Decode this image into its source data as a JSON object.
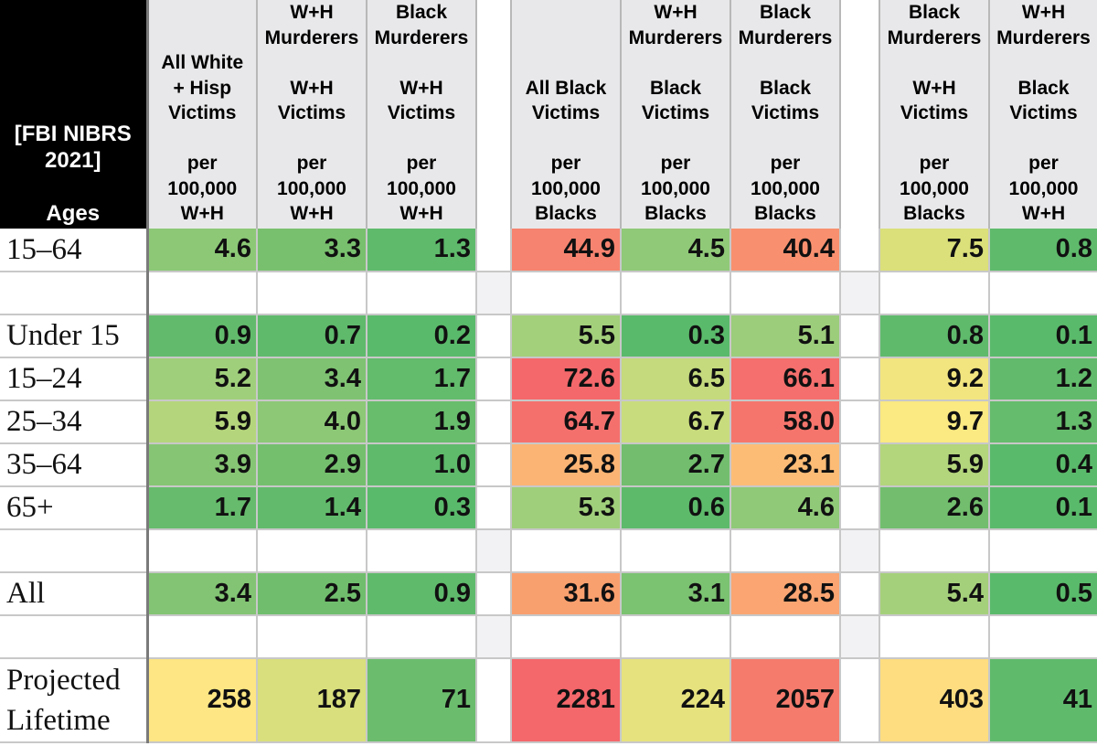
{
  "header": {
    "corner_title": "[FBI NIBRS\n2021]\n\nAges",
    "columns": [
      "All White\n+ Hisp\nVictims\n\nper\n100,000\nW+H",
      "W+H\nMurderers\n\nW+H\nVictims\n\nper\n100,000\nW+H",
      "Black\nMurderers\n\nW+H\nVictims\n\nper\n100,000\nW+H",
      "All Black\nVictims\n\nper\n100,000\nBlacks",
      "W+H\nMurderers\n\nBlack\nVictims\n\nper\n100,000\nBlacks",
      "Black\nMurderers\n\nBlack\nVictims\n\nper\n100,000\nBlacks",
      "Black\nMurderers\n\nW+H\nVictims\n\nper\n100,000\nBlacks",
      "W+H\nMurderers\n\nBlack\nVictims\n\nper\n100,000\nW+H"
    ]
  },
  "rows": [
    {
      "label": "15–64",
      "values": [
        "4.6",
        "3.3",
        "1.3",
        "44.9",
        "4.5",
        "40.4",
        "7.5",
        "0.8"
      ],
      "colors": [
        "#8cc876",
        "#79c06e",
        "#5fba6c",
        "#f6836f",
        "#90c978",
        "#f8906f",
        "#dbe07a",
        "#5fba6c"
      ]
    },
    {
      "spacer": true
    },
    {
      "label": "Under 15",
      "values": [
        "0.9",
        "0.7",
        "0.2",
        "5.5",
        "0.3",
        "5.1",
        "0.8",
        "0.1"
      ],
      "colors": [
        "#62bb6c",
        "#5fba6c",
        "#5aba6b",
        "#a3d07b",
        "#5aba6b",
        "#9ccd7b",
        "#5fba6c",
        "#5aba6b"
      ]
    },
    {
      "label": "15–24",
      "values": [
        "5.2",
        "3.4",
        "1.7",
        "72.6",
        "6.5",
        "66.1",
        "9.2",
        "1.2"
      ],
      "colors": [
        "#a0cf7b",
        "#7fc372",
        "#63bb6c",
        "#f4686b",
        "#c4da7d",
        "#f46f6d",
        "#f2e57f",
        "#62bb6c"
      ]
    },
    {
      "label": "25–34",
      "values": [
        "5.9",
        "4.0",
        "1.9",
        "64.7",
        "6.7",
        "58.0",
        "9.7",
        "1.3"
      ],
      "colors": [
        "#b5d57c",
        "#8cc876",
        "#68bd6d",
        "#f4706d",
        "#c9dc7d",
        "#f5756c",
        "#fbe982",
        "#65bc6c"
      ]
    },
    {
      "label": "35–64",
      "values": [
        "3.9",
        "2.9",
        "1.0",
        "25.8",
        "2.7",
        "23.1",
        "5.9",
        "0.4"
      ],
      "colors": [
        "#86c574",
        "#74bf6e",
        "#5fba6c",
        "#fbb474",
        "#72be6e",
        "#fdbc76",
        "#b3d57c",
        "#5aba6b"
      ]
    },
    {
      "label": "65+",
      "values": [
        "1.7",
        "1.4",
        "0.3",
        "5.3",
        "0.6",
        "4.6",
        "2.6",
        "0.1"
      ],
      "colors": [
        "#66bc6c",
        "#62bb6c",
        "#5aba6b",
        "#a0cf7b",
        "#5dba6b",
        "#90c978",
        "#72be6e",
        "#5aba6b"
      ]
    },
    {
      "spacer": true
    },
    {
      "label": "All",
      "values": [
        "3.4",
        "2.5",
        "0.9",
        "31.6",
        "3.1",
        "28.5",
        "5.4",
        "0.5"
      ],
      "colors": [
        "#82c473",
        "#70be6d",
        "#5fba6c",
        "#f9a06f",
        "#7bc271",
        "#faa572",
        "#a5d07b",
        "#5aba6b"
      ]
    },
    {
      "spacer": true
    },
    {
      "label": "Projected\nLifetime",
      "values": [
        "258",
        "187",
        "71",
        "2281",
        "224",
        "2057",
        "403",
        "41"
      ],
      "colors": [
        "#fde683",
        "#d8df7c",
        "#6bbd6d",
        "#f4676b",
        "#e6e27e",
        "#f57b6d",
        "#fddd80",
        "#5fba6c"
      ]
    }
  ]
}
